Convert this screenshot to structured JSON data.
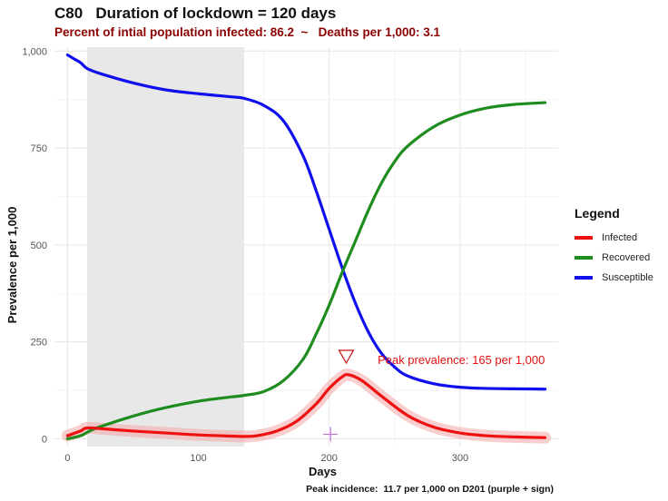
{
  "title": "C80   Duration of lockdown = 120 days",
  "subtitle": "Percent of intial population infected: 86.2  ~   Deaths per 1,000: 3.1",
  "caption": "Peak incidence:  11.7 per 1,000 on D201 (purple + sign)",
  "annotation": "Peak prevalence: 165 per 1,000",
  "legend": {
    "title": "Legend",
    "items": [
      {
        "label": "Infected",
        "color": "#ee1111"
      },
      {
        "label": "Recovered",
        "color": "#1e8c1e"
      },
      {
        "label": "Susceptible",
        "color": "#1010ee"
      }
    ]
  },
  "chart_data": {
    "type": "line",
    "xlabel": "Days",
    "ylabel": "Prevalence per 1,000",
    "xlim": [
      -10,
      375
    ],
    "ylim": [
      -20,
      1010
    ],
    "xticks": [
      0,
      100,
      200,
      300
    ],
    "yticks": [
      0,
      250,
      500,
      750,
      1000
    ],
    "ytick_labels": [
      "0",
      "250",
      "500",
      "750",
      "1,000"
    ],
    "lockdown_days": [
      15,
      135
    ],
    "peak_prevalence": {
      "day": 213,
      "value": 165
    },
    "peak_incidence": {
      "day": 201,
      "value": 11.7
    },
    "series": [
      {
        "name": "Infected",
        "color": "#ee1111",
        "x": [
          0,
          10,
          15,
          30,
          50,
          75,
          100,
          125,
          135,
          145,
          160,
          175,
          190,
          200,
          210,
          215,
          225,
          240,
          260,
          280,
          300,
          320,
          340,
          365
        ],
        "y": [
          8,
          20,
          28,
          25,
          20,
          15,
          10,
          7,
          6,
          8,
          20,
          45,
          90,
          130,
          160,
          165,
          150,
          110,
          60,
          30,
          15,
          8,
          5,
          3
        ]
      },
      {
        "name": "Recovered",
        "color": "#1e8c1e",
        "x": [
          0,
          10,
          20,
          40,
          60,
          80,
          100,
          120,
          135,
          150,
          165,
          180,
          190,
          200,
          210,
          220,
          230,
          240,
          250,
          260,
          280,
          300,
          320,
          340,
          365
        ],
        "y": [
          0,
          8,
          25,
          48,
          68,
          84,
          97,
          106,
          112,
          122,
          150,
          205,
          270,
          345,
          430,
          510,
          590,
          660,
          715,
          755,
          805,
          835,
          853,
          862,
          867
        ]
      },
      {
        "name": "Susceptible",
        "color": "#1010ee",
        "x": [
          0,
          5,
          10,
          15,
          25,
          50,
          75,
          100,
          125,
          135,
          150,
          165,
          180,
          190,
          200,
          210,
          220,
          230,
          240,
          250,
          260,
          280,
          300,
          320,
          340,
          365
        ],
        "y": [
          990,
          980,
          970,
          955,
          942,
          918,
          900,
          890,
          882,
          878,
          860,
          820,
          730,
          640,
          540,
          440,
          350,
          275,
          220,
          185,
          162,
          142,
          133,
          130,
          129,
          128
        ]
      }
    ]
  }
}
